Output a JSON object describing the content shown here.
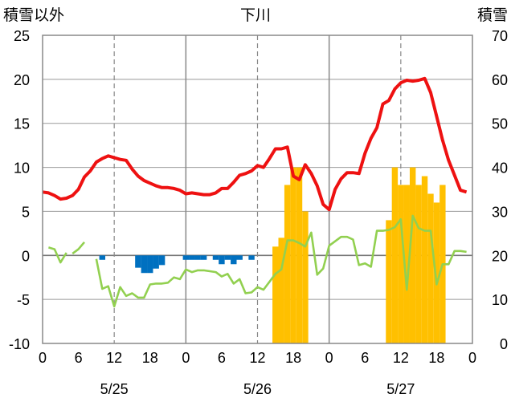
{
  "chart_data": {
    "type": "line",
    "title": "下川",
    "left_axis_label": "積雪以外",
    "right_axis_label": "積雪",
    "y_left": {
      "min": -10,
      "max": 25,
      "ticks": [
        "25",
        "20",
        "15",
        "10",
        "5",
        "0",
        "-5",
        "-10"
      ]
    },
    "y_right": {
      "min": 0,
      "max": 70,
      "ticks": [
        "70",
        "60",
        "50",
        "40",
        "30",
        "20",
        "10",
        "0"
      ]
    },
    "x": {
      "min": 0,
      "max": 72,
      "tick_hours": [
        0,
        6,
        12,
        18,
        24,
        30,
        36,
        42,
        48,
        54,
        60,
        66,
        72
      ],
      "tick_labels": [
        "0",
        "6",
        "12",
        "18",
        "0",
        "6",
        "12",
        "18",
        "0",
        "6",
        "12",
        "18",
        "0"
      ],
      "dates": [
        {
          "label": "5/25",
          "hour": 12
        },
        {
          "label": "5/26",
          "hour": 36
        },
        {
          "label": "5/27",
          "hour": 60
        }
      ],
      "solid_gridlines": [
        24,
        48
      ],
      "dashed_gridlines": [
        12,
        36,
        60
      ]
    },
    "colors": {
      "temperature": "#ee1111",
      "dewpoint": "#92d050",
      "snowfall": "#ffc000",
      "precip_negative": "#0070c0"
    },
    "series": [
      {
        "key": "temperature",
        "hours": [
          0,
          1,
          2,
          3,
          4,
          5,
          6,
          7,
          8,
          9,
          10,
          11,
          12,
          13,
          14,
          15,
          16,
          17,
          18,
          19,
          20,
          21,
          22,
          23,
          24,
          25,
          26,
          27,
          28,
          29,
          30,
          31,
          32,
          33,
          34,
          35,
          36,
          37,
          38,
          39,
          40,
          41,
          42,
          43,
          44,
          45,
          46,
          47,
          48,
          49,
          50,
          51,
          52,
          53,
          54,
          55,
          56,
          57,
          58,
          59,
          60,
          61,
          62,
          63,
          64,
          65,
          66,
          67,
          68,
          69,
          70,
          71
        ],
        "values": [
          7.2,
          7.1,
          6.8,
          6.4,
          6.5,
          6.8,
          7.5,
          8.9,
          9.6,
          10.6,
          11.0,
          11.3,
          11.1,
          10.9,
          10.8,
          9.8,
          9.0,
          8.5,
          8.2,
          7.9,
          7.7,
          7.7,
          7.6,
          7.4,
          7.0,
          7.1,
          7.0,
          6.9,
          6.9,
          7.1,
          7.6,
          7.6,
          8.3,
          9.1,
          9.3,
          9.6,
          10.2,
          10.0,
          11.0,
          12.1,
          12.1,
          12.3,
          9.0,
          8.6,
          10.3,
          9.3,
          7.9,
          5.8,
          5.2,
          7.5,
          8.7,
          9.4,
          9.4,
          9.3,
          11.6,
          13.3,
          14.5,
          17.2,
          17.6,
          18.9,
          19.6,
          19.9,
          19.8,
          19.9,
          20.1,
          18.5,
          15.8,
          13.1,
          10.8,
          9.1,
          7.4,
          7.2
        ]
      },
      {
        "key": "dewpoint",
        "segments": [
          {
            "hours": [
              1,
              2,
              3,
              4
            ],
            "values": [
              0.9,
              0.7,
              -0.8,
              0.3
            ]
          },
          {
            "hours": [
              5,
              6,
              7
            ],
            "values": [
              0.2,
              0.7,
              1.5
            ]
          },
          {
            "hours": [
              9,
              10,
              11,
              12,
              13,
              14,
              15,
              16,
              17,
              18,
              19,
              20,
              21,
              22,
              23,
              24,
              25,
              26,
              27,
              28,
              29,
              30,
              31,
              32,
              33,
              34,
              35,
              36,
              37,
              38,
              39,
              40,
              41,
              42,
              43,
              44,
              45,
              46,
              47,
              48,
              49,
              50,
              51,
              52,
              53,
              54,
              55,
              56,
              57,
              58,
              59,
              60,
              61,
              62,
              63,
              64,
              65,
              66,
              67,
              68,
              69,
              70,
              71
            ],
            "values": [
              -0.4,
              -3.8,
              -3.5,
              -5.8,
              -3.6,
              -4.6,
              -4.3,
              -4.8,
              -4.8,
              -3.3,
              -3.2,
              -3.2,
              -3.1,
              -2.5,
              -2.7,
              -1.6,
              -1.9,
              -1.7,
              -1.7,
              -1.8,
              -1.9,
              -2.4,
              -2.1,
              -3.2,
              -2.7,
              -4.3,
              -4.2,
              -3.6,
              -3.9,
              -3.0,
              -2.1,
              -1.6,
              1.7,
              1.7,
              1.4,
              1.0,
              2.6,
              -2.2,
              -1.5,
              1.1,
              1.6,
              2.1,
              2.1,
              1.8,
              -1.1,
              -0.9,
              -1.3,
              2.8,
              2.8,
              2.9,
              3.2,
              4.1,
              -3.9,
              4.5,
              3.1,
              2.8,
              2.8,
              -3.3,
              -1.0,
              -1.0,
              0.5,
              0.5,
              0.4
            ]
          }
        ]
      },
      {
        "key": "snowfall",
        "hours": [
          39,
          40,
          41,
          42,
          43,
          44,
          45,
          46,
          47,
          48,
          49,
          50,
          51,
          52,
          53,
          54,
          55,
          56,
          57,
          58,
          59,
          60,
          61,
          62,
          63,
          64,
          65,
          66,
          67,
          68,
          69,
          70,
          71
        ],
        "values": [
          22,
          24,
          36,
          40,
          40,
          30,
          0,
          0,
          0,
          0,
          0,
          0,
          0,
          0,
          0,
          0,
          0,
          0,
          0,
          0,
          0,
          0,
          0,
          0,
          0,
          0,
          0,
          0,
          0,
          0,
          0,
          0,
          0
        ]
      },
      {
        "key": "snowfall_day3",
        "hours": [
          58,
          59,
          60,
          61,
          62,
          63,
          64,
          65,
          66,
          67,
          68,
          69,
          70
        ],
        "values": [
          28,
          40,
          36,
          36,
          40,
          36,
          38,
          34,
          32,
          36,
          0,
          0,
          0
        ]
      },
      {
        "key": "precip_negative",
        "hours": [
          10,
          16,
          17,
          18,
          19,
          20,
          24,
          25,
          26,
          27,
          29,
          30,
          31,
          32,
          33,
          35
        ],
        "values": [
          -0.5,
          -1.4,
          -2.0,
          -2.0,
          -1.5,
          -1.1,
          -0.5,
          -0.5,
          -0.5,
          -0.5,
          -0.5,
          -1.0,
          -0.5,
          -1.0,
          -0.5,
          -0.5
        ]
      }
    ]
  }
}
